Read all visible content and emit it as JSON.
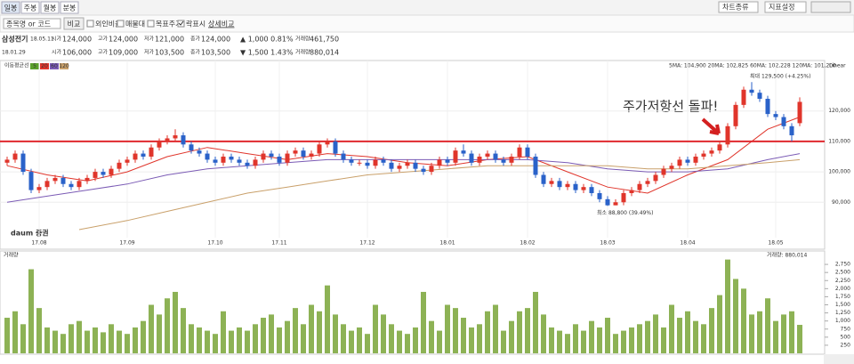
{
  "toolbar": {
    "tabs": [
      "일봉",
      "주봉",
      "월봉",
      "분봉"
    ],
    "search_placeholder": "종목명 or 코드",
    "compare": "비교",
    "options": [
      "외인비율",
      "매물대",
      "목표주가",
      "락표시"
    ],
    "detail": "상세비교",
    "chart_type": "차트종류",
    "indicator": "지표설정"
  },
  "quote": {
    "name": "삼성전기",
    "date": "18.05.11",
    "fields": [
      [
        "시가",
        "124,000"
      ],
      [
        "고가",
        "124,000"
      ],
      [
        "저가",
        "121,000"
      ],
      [
        "종가",
        "124,000"
      ]
    ],
    "change": "▲ 1,000 0.81%",
    "volume_label": "거래량",
    "volume": "461,750"
  },
  "cursor": {
    "date": "18.01.29",
    "fields": [
      [
        "시가",
        "106,000"
      ],
      [
        "고가",
        "109,000"
      ],
      [
        "저가",
        "103,500"
      ],
      [
        "종가",
        "103,500"
      ]
    ],
    "change": "▼ 1,500 1.43%",
    "volume_label": "거래량",
    "volume": "880,014"
  },
  "chart_data": {
    "type": "candlestick",
    "ma_label": "이동평균선",
    "ma_periods": [
      {
        "label": "5",
        "color": "#5aa02c"
      },
      {
        "label": "20",
        "color": "#e0352b"
      },
      {
        "label": "60",
        "color": "#7b5bb5"
      },
      {
        "label": "120",
        "color": "#c9a06a"
      }
    ],
    "ma_values_text": "5MA: 104,900  20MA: 102,825  60MA: 102,228  120MA: 101,200",
    "scale_label": "Linear",
    "up_color": "#e0352b",
    "down_color": "#2a62c9",
    "ohlc": [
      [
        103000,
        105000,
        102000,
        104000
      ],
      [
        104000,
        107000,
        103000,
        106000
      ],
      [
        106000,
        107000,
        99000,
        100000
      ],
      [
        100000,
        101000,
        93000,
        94000
      ],
      [
        94000,
        96000,
        93000,
        95000
      ],
      [
        95000,
        98000,
        94000,
        97000
      ],
      [
        97000,
        99000,
        96000,
        98000
      ],
      [
        98000,
        99000,
        95000,
        96000
      ],
      [
        96000,
        97000,
        94000,
        95000
      ],
      [
        95000,
        98000,
        94000,
        97000
      ],
      [
        97000,
        99000,
        96000,
        98000
      ],
      [
        98000,
        101000,
        97000,
        100000
      ],
      [
        100000,
        101000,
        98000,
        99000
      ],
      [
        99000,
        102000,
        98000,
        101000
      ],
      [
        101000,
        104000,
        100000,
        103000
      ],
      [
        103000,
        105000,
        102000,
        104000
      ],
      [
        104000,
        107000,
        103000,
        106000
      ],
      [
        106000,
        107000,
        104000,
        105000
      ],
      [
        105000,
        109000,
        104000,
        108000
      ],
      [
        108000,
        111000,
        107000,
        110000
      ],
      [
        110000,
        112000,
        109000,
        111000
      ],
      [
        111000,
        114000,
        110000,
        112000
      ],
      [
        112000,
        113000,
        108000,
        109000
      ],
      [
        109000,
        110000,
        106000,
        107000
      ],
      [
        107000,
        108000,
        105000,
        106000
      ],
      [
        106000,
        107000,
        103000,
        104000
      ],
      [
        104000,
        105000,
        102000,
        103000
      ],
      [
        103000,
        106000,
        102000,
        105000
      ],
      [
        105000,
        106000,
        103000,
        104000
      ],
      [
        104000,
        105000,
        102000,
        103000
      ],
      [
        103000,
        104000,
        101000,
        102000
      ],
      [
        102000,
        105000,
        101000,
        104000
      ],
      [
        104000,
        107000,
        103000,
        106000
      ],
      [
        106000,
        107000,
        104000,
        105000
      ],
      [
        105000,
        106000,
        102000,
        103000
      ],
      [
        103000,
        107000,
        102000,
        106000
      ],
      [
        106000,
        108000,
        105000,
        107000
      ],
      [
        107000,
        108000,
        104000,
        105000
      ],
      [
        105000,
        107000,
        104000,
        106000
      ],
      [
        106000,
        110000,
        105000,
        109000
      ],
      [
        109000,
        111000,
        108000,
        110000
      ],
      [
        110000,
        111000,
        105000,
        106000
      ],
      [
        106000,
        107000,
        103000,
        104000
      ],
      [
        104000,
        105000,
        102000,
        103000
      ],
      [
        103000,
        104000,
        102000,
        103000
      ],
      [
        103000,
        104000,
        101000,
        102000
      ],
      [
        102000,
        105000,
        101000,
        104000
      ],
      [
        104000,
        105000,
        102000,
        103000
      ],
      [
        103000,
        104000,
        100000,
        101000
      ],
      [
        101000,
        103000,
        100000,
        102000
      ],
      [
        102000,
        104000,
        101000,
        103000
      ],
      [
        103000,
        104000,
        100000,
        101000
      ],
      [
        101000,
        102000,
        99000,
        100000
      ],
      [
        100000,
        103000,
        99000,
        102000
      ],
      [
        102000,
        105000,
        101000,
        104000
      ],
      [
        104000,
        105000,
        102000,
        103000
      ],
      [
        103000,
        108000,
        102000,
        107000
      ],
      [
        107000,
        109000,
        105000,
        106000
      ],
      [
        106000,
        107000,
        102000,
        103000
      ],
      [
        103000,
        106000,
        102000,
        105000
      ],
      [
        105000,
        107000,
        104000,
        106000
      ],
      [
        106000,
        107000,
        103000,
        104000
      ],
      [
        104000,
        105000,
        102000,
        103000
      ],
      [
        103000,
        106000,
        102000,
        105000
      ],
      [
        105000,
        109000,
        104000,
        108000
      ],
      [
        108000,
        109000,
        104000,
        105000
      ],
      [
        105000,
        106000,
        98000,
        99000
      ],
      [
        99000,
        100000,
        95000,
        96000
      ],
      [
        96000,
        98000,
        95000,
        97000
      ],
      [
        97000,
        98000,
        94000,
        95000
      ],
      [
        95000,
        97000,
        94000,
        96000
      ],
      [
        96000,
        97000,
        93000,
        94000
      ],
      [
        94000,
        96000,
        93000,
        95000
      ],
      [
        95000,
        96000,
        92000,
        93000
      ],
      [
        93000,
        94000,
        90000,
        91000
      ],
      [
        91000,
        92000,
        88800,
        89000
      ],
      [
        89000,
        91000,
        89000,
        90000
      ],
      [
        90000,
        94000,
        89000,
        93000
      ],
      [
        93000,
        95000,
        92000,
        94000
      ],
      [
        94000,
        97000,
        93000,
        96000
      ],
      [
        96000,
        98000,
        95000,
        97000
      ],
      [
        97000,
        100000,
        96000,
        99000
      ],
      [
        99000,
        102000,
        98000,
        101000
      ],
      [
        101000,
        103000,
        100000,
        102000
      ],
      [
        102000,
        105000,
        101000,
        104000
      ],
      [
        104000,
        105000,
        102000,
        103000
      ],
      [
        103000,
        106000,
        102000,
        105000
      ],
      [
        105000,
        107000,
        104000,
        106000
      ],
      [
        106000,
        108000,
        105000,
        107000
      ],
      [
        107000,
        110000,
        106000,
        109000
      ],
      [
        109000,
        116000,
        108000,
        115000
      ],
      [
        115000,
        123000,
        114000,
        122000
      ],
      [
        122000,
        128000,
        121000,
        127000
      ],
      [
        127000,
        129500,
        125000,
        126000
      ],
      [
        126000,
        127000,
        123000,
        124000
      ],
      [
        124000,
        125000,
        118000,
        119000
      ],
      [
        119000,
        120000,
        117000,
        118000
      ],
      [
        118000,
        119000,
        114000,
        115000
      ],
      [
        115000,
        116000,
        110000,
        112000
      ],
      [
        116000,
        124500,
        115000,
        123000
      ]
    ],
    "ma_lines": [
      {
        "color": "#e0352b",
        "x": [
          0,
          5,
          10,
          15,
          20,
          25,
          30,
          35,
          40,
          45,
          50,
          55,
          60,
          65,
          70,
          75,
          80,
          85,
          90,
          95,
          99
        ],
        "values": [
          102000,
          99000,
          97000,
          100000,
          105000,
          108000,
          106000,
          104000,
          106000,
          105000,
          103000,
          102000,
          104000,
          105000,
          100000,
          95000,
          93000,
          99000,
          104000,
          114000,
          118000
        ]
      },
      {
        "color": "#7b5bb5",
        "x": [
          0,
          5,
          10,
          15,
          20,
          25,
          30,
          35,
          40,
          45,
          50,
          55,
          60,
          65,
          70,
          75,
          80,
          85,
          90,
          95,
          99
        ],
        "values": [
          90000,
          92000,
          94000,
          96000,
          99000,
          101000,
          102000,
          103000,
          104000,
          104000,
          104000,
          104000,
          104000,
          104000,
          103000,
          101000,
          100000,
          100000,
          101000,
          104000,
          106000
        ]
      },
      {
        "color": "#c9a06a",
        "x": [
          9,
          15,
          20,
          25,
          30,
          35,
          40,
          45,
          50,
          55,
          60,
          65,
          70,
          75,
          80,
          85,
          90,
          95,
          99
        ],
        "values": [
          81000,
          84000,
          87000,
          90000,
          93000,
          95000,
          97000,
          99000,
          100000,
          101000,
          102000,
          102000,
          102000,
          102000,
          101000,
          101000,
          102000,
          103000,
          104000
        ]
      }
    ],
    "resistance": {
      "value": 110000,
      "color": "#e0282e"
    },
    "annotation": "주가저항선 돌파!",
    "high_label": "최대 129,500 (+4.25%)",
    "low_label": "최소 88,800 (39.49%)",
    "watermark": "daum 증권",
    "xlim": [
      -1,
      101
    ],
    "xticks": [
      {
        "value": 4,
        "label": "17.08"
      },
      {
        "value": 15,
        "label": "17.09"
      },
      {
        "value": 26,
        "label": "17.10"
      },
      {
        "value": 34,
        "label": "17.11"
      },
      {
        "value": 45,
        "label": "17.12"
      },
      {
        "value": 55,
        "label": "18.01"
      },
      {
        "value": 65,
        "label": "18.02"
      },
      {
        "value": 75,
        "label": "18.03"
      },
      {
        "value": 85,
        "label": "18.04"
      },
      {
        "value": 96,
        "label": "18.05"
      }
    ],
    "ylim": [
      77500,
      136000
    ],
    "yticks": [
      {
        "value": 90000,
        "label": "90,000"
      },
      {
        "value": 100000,
        "label": "100,000"
      },
      {
        "value": 110000,
        "label": "110,000"
      },
      {
        "value": 120000,
        "label": "120,000"
      }
    ],
    "volume": {
      "label": "거래량",
      "cursor_label": "거래량: 880,014",
      "color": "#8db255",
      "ylim": [
        0,
        3000
      ],
      "yticks": [
        250,
        500,
        750,
        {
          "value": 1000,
          "label": "1,000"
        },
        {
          "value": 1250,
          "label": "1,250"
        },
        {
          "value": 1500,
          "label": "1,500"
        },
        {
          "value": 1750,
          "label": "1,750"
        },
        {
          "value": 2000,
          "label": "2,000"
        },
        {
          "value": 2250,
          "label": "2,250"
        },
        {
          "value": 2500,
          "label": "2,500"
        },
        {
          "value": 2750,
          "label": "2,750"
        }
      ],
      "values": [
        1100,
        1300,
        900,
        2600,
        1400,
        800,
        700,
        600,
        900,
        1000,
        700,
        800,
        650,
        900,
        700,
        600,
        800,
        1000,
        1500,
        1200,
        1700,
        1900,
        1400,
        900,
        800,
        700,
        600,
        1300,
        700,
        800,
        700,
        900,
        1100,
        1200,
        800,
        1000,
        1400,
        900,
        1500,
        1300,
        2100,
        1200,
        900,
        700,
        800,
        600,
        1500,
        1200,
        900,
        700,
        600,
        800,
        1900,
        1000,
        700,
        1500,
        1400,
        1100,
        800,
        900,
        1300,
        1500,
        700,
        1000,
        1300,
        1400,
        1900,
        1200,
        800,
        700,
        600,
        900,
        700,
        1000,
        800,
        1100,
        600,
        700,
        800,
        900,
        1000,
        1200,
        800,
        1500,
        1100,
        1300,
        1000,
        900,
        1400,
        1800,
        2900,
        2300,
        2000,
        1200,
        1300,
        1700,
        1000,
        1200,
        1300,
        880
      ]
    }
  }
}
